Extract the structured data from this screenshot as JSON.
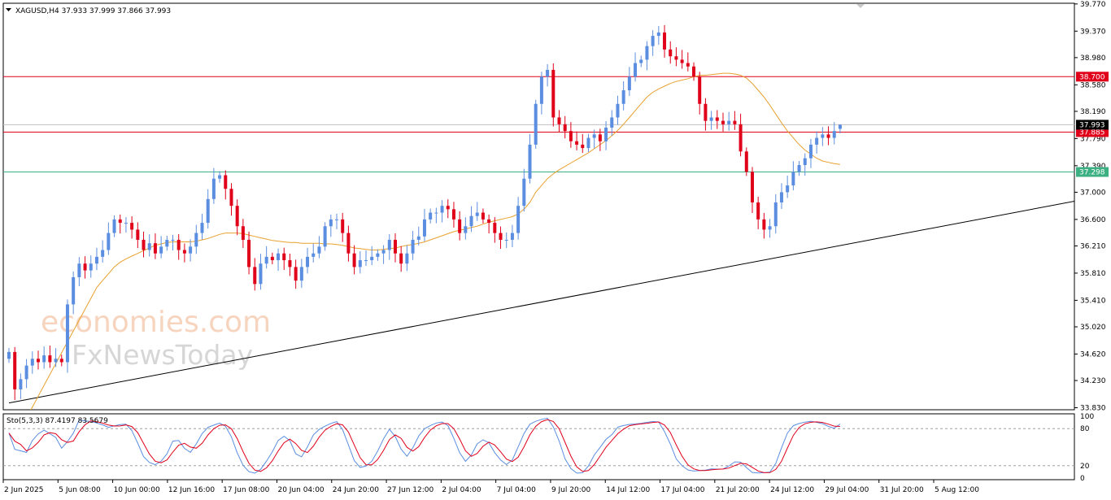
{
  "header": {
    "symbol_line": "XAGUSD,H4  37.933 37.999 37.866 37.993",
    "stoch_line": "Sto(5,3,3) 87.4197 83.5679"
  },
  "watermark": {
    "brand1": "economies.com",
    "brand2": "FxNewsToday"
  },
  "colors": {
    "bull": "#5b8ee0",
    "bear": "#e0001a",
    "ma": "#e8a12f",
    "resistance": "#e0001a",
    "support": "#3cb083",
    "trendline": "#000000",
    "stoch_main": "#5b8ee0",
    "stoch_signal": "#e0001a"
  },
  "chart_data": {
    "type": "candlestick",
    "symbol": "XAGUSD",
    "timeframe": "H4",
    "ohlc_current": {
      "open": 37.933,
      "high": 37.999,
      "low": 37.866,
      "close": 37.993
    },
    "y_ticks": [
      "39.770",
      "39.370",
      "38.980",
      "38.580",
      "38.190",
      "37.790",
      "37.390",
      "37.000",
      "36.600",
      "36.210",
      "35.810",
      "35.410",
      "35.020",
      "34.620",
      "34.230",
      "33.830"
    ],
    "y_range": [
      33.8,
      39.78
    ],
    "x_labels": [
      "2 Jun 2025",
      "5 Jun 08:00",
      "10 Jun 00:00",
      "12 Jun 16:00",
      "17 Jun 08:00",
      "20 Jun 04:00",
      "24 Jun 20:00",
      "27 Jun 12:00",
      "2 Jul 04:00",
      "7 Jul 04:00",
      "9 Jul 20:00",
      "14 Jul 12:00",
      "17 Jul 04:00",
      "21 Jul 20:00",
      "24 Jul 12:00",
      "29 Jul 04:00",
      "31 Jul 20:00",
      "5 Aug 12:00"
    ],
    "closes": [
      34.65,
      34.1,
      34.25,
      34.45,
      34.55,
      34.5,
      34.6,
      34.5,
      34.55,
      34.5,
      35.35,
      35.75,
      35.95,
      35.85,
      35.95,
      36.05,
      36.15,
      36.4,
      36.6,
      36.55,
      36.55,
      36.45,
      36.3,
      36.15,
      36.25,
      36.1,
      36.2,
      36.3,
      36.3,
      36.15,
      36.1,
      36.2,
      36.4,
      36.55,
      36.9,
      37.2,
      37.25,
      37.05,
      36.8,
      36.5,
      36.3,
      35.9,
      35.65,
      35.95,
      36.05,
      36.0,
      36.1,
      36.0,
      35.9,
      35.7,
      35.9,
      36.05,
      36.1,
      36.2,
      36.5,
      36.6,
      36.6,
      36.4,
      36.1,
      35.9,
      36.0,
      36.0,
      36.05,
      36.1,
      36.15,
      36.3,
      36.1,
      35.95,
      36.1,
      36.3,
      36.35,
      36.6,
      36.7,
      36.7,
      36.8,
      36.75,
      36.6,
      36.4,
      36.5,
      36.65,
      36.7,
      36.6,
      36.55,
      36.4,
      36.3,
      36.3,
      36.4,
      36.8,
      37.2,
      37.7,
      38.3,
      38.7,
      38.8,
      38.1,
      38.0,
      37.9,
      37.75,
      37.7,
      37.65,
      37.8,
      37.85,
      37.75,
      37.95,
      38.1,
      38.3,
      38.5,
      38.7,
      38.9,
      38.95,
      39.15,
      39.3,
      39.35,
      39.1,
      39.0,
      38.95,
      38.9,
      38.85,
      38.7,
      38.3,
      38.05,
      38.1,
      38.05,
      38.0,
      38.05,
      38.0,
      37.6,
      37.3,
      36.85,
      36.6,
      36.45,
      36.5,
      36.85,
      37.0,
      37.1,
      37.3,
      37.4,
      37.5,
      37.7,
      37.8,
      37.85,
      37.8,
      37.9,
      37.993
    ],
    "ma_visible_from_index": 10,
    "ma_values": [
      33.2,
      33.36,
      33.52,
      33.68,
      33.84,
      34.0,
      34.16,
      34.32,
      34.48,
      34.64,
      34.8,
      34.96,
      35.12,
      35.28,
      35.44,
      35.6,
      35.7,
      35.8,
      35.9,
      35.97,
      36.02,
      36.06,
      36.1,
      36.14,
      36.18,
      36.22,
      36.24,
      36.26,
      36.27,
      36.27,
      36.27,
      36.27,
      36.28,
      36.3,
      36.32,
      36.35,
      36.38,
      36.4,
      36.4,
      36.4,
      36.39,
      36.37,
      36.35,
      36.33,
      36.31,
      36.29,
      36.28,
      36.27,
      36.26,
      36.26,
      36.25,
      36.25,
      36.25,
      36.25,
      36.24,
      36.24,
      36.23,
      36.22,
      36.2,
      36.18,
      36.17,
      36.16,
      36.15,
      36.15,
      36.16,
      36.17,
      36.18,
      36.2,
      36.22,
      36.23,
      36.25,
      36.27,
      36.3,
      36.33,
      36.36,
      36.39,
      36.42,
      36.44,
      36.46,
      36.48,
      36.5,
      36.53,
      36.56,
      36.58,
      36.6,
      36.62,
      36.64,
      36.68,
      36.75,
      36.85,
      37.0,
      37.1,
      37.2,
      37.27,
      37.33,
      37.38,
      37.43,
      37.48,
      37.53,
      37.58,
      37.64,
      37.7,
      37.76,
      37.83,
      37.91,
      38.0,
      38.1,
      38.2,
      38.3,
      38.4,
      38.47,
      38.52,
      38.56,
      38.6,
      38.63,
      38.65,
      38.67,
      38.7,
      38.72,
      38.72,
      38.73,
      38.74,
      38.75,
      38.75,
      38.74,
      38.72,
      38.68,
      38.6,
      38.5,
      38.4,
      38.28,
      38.15,
      38.02,
      37.9,
      37.8,
      37.7,
      37.62,
      37.56,
      37.5,
      37.46,
      37.44,
      37.42,
      37.41
    ],
    "horizontal_levels": [
      {
        "value": 38.7,
        "label": "38.700",
        "color": "#e0001a"
      },
      {
        "value": 37.885,
        "label": "37.885",
        "color": "#e0001a"
      },
      {
        "value": 37.298,
        "label": "37.298",
        "color": "#3cb083"
      }
    ],
    "current_price": {
      "value": 37.993,
      "label": "37.993"
    },
    "trendline": {
      "from": {
        "index": 0,
        "value": 33.9
      },
      "to": {
        "index": 184,
        "value": 36.9
      }
    },
    "extra_slots": 40,
    "stochastic": {
      "name": "Sto(5,3,3)",
      "k_latest": 87.4197,
      "d_latest": 83.5679,
      "y_labels": [
        "100",
        "80",
        "20",
        "0"
      ],
      "levels": [
        80,
        20
      ]
    }
  }
}
